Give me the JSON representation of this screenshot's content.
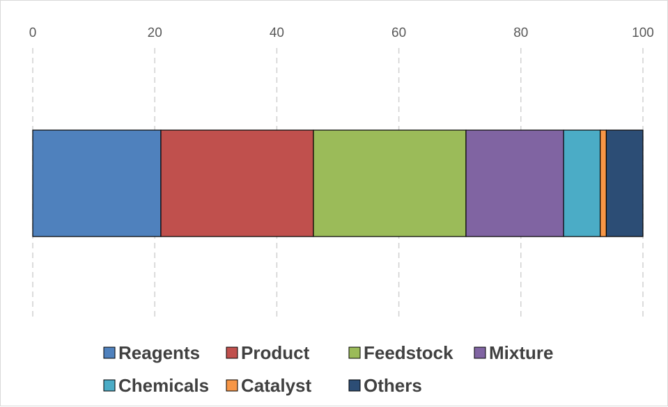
{
  "chart_data": {
    "type": "bar",
    "orientation": "horizontal",
    "stacked": true,
    "categories": [
      ""
    ],
    "xlim": [
      0,
      100
    ],
    "x_ticks": [
      0,
      20,
      40,
      60,
      80,
      100
    ],
    "x_tick_labels": [
      "0",
      "20",
      "40",
      "60",
      "80",
      "100"
    ],
    "grid": "vertical dashed",
    "legend_position": "bottom",
    "series": [
      {
        "name": "Reagents",
        "values": [
          21
        ],
        "color": "#4f81bd"
      },
      {
        "name": "Product",
        "values": [
          25
        ],
        "color": "#c0504d"
      },
      {
        "name": "Feedstock",
        "values": [
          25
        ],
        "color": "#9bbb59"
      },
      {
        "name": "Mixture",
        "values": [
          16
        ],
        "color": "#8064a2"
      },
      {
        "name": "Chemicals",
        "values": [
          6
        ],
        "color": "#4bacc6"
      },
      {
        "name": "Catalyst",
        "values": [
          1
        ],
        "color": "#f79646"
      },
      {
        "name": "Others",
        "values": [
          6
        ],
        "color": "#2c4d75"
      }
    ]
  }
}
